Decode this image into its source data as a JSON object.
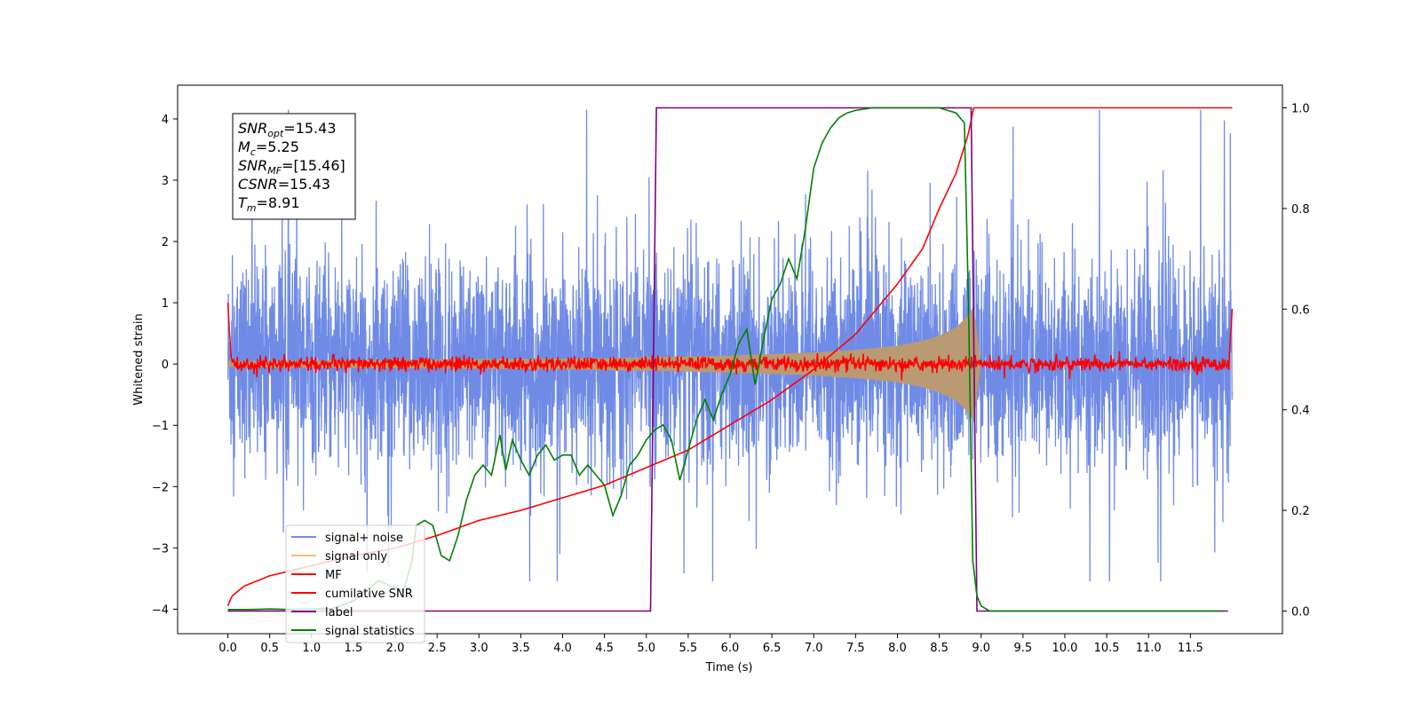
{
  "chart_data": {
    "type": "line",
    "xlabel": "Time (s)",
    "ylabel": "Whitened strain",
    "xlim": [
      -0.6,
      12.6
    ],
    "ylim": [
      -4.4,
      4.55
    ],
    "y2lim": [
      -0.045,
      1.045
    ],
    "x_ticks": [
      "0.0",
      "0.5",
      "1.0",
      "1.5",
      "2.0",
      "2.5",
      "3.0",
      "3.5",
      "4.0",
      "4.5",
      "5.0",
      "5.5",
      "6.0",
      "6.5",
      "7.0",
      "7.5",
      "8.0",
      "8.5",
      "9.0",
      "9.5",
      "10.0",
      "10.5",
      "11.0",
      "11.5"
    ],
    "y_ticks": [
      "4",
      "3",
      "2",
      "1",
      "0",
      "-1",
      "-2",
      "-3",
      "-4"
    ],
    "y2_ticks": [
      "1.0",
      "0.8",
      "0.6",
      "0.4",
      "0.2",
      "0.0"
    ],
    "grid": false,
    "legend_position": "lower-left",
    "annotation": [
      {
        "sym": "SNR",
        "sub": "opt",
        "val": "=15.43"
      },
      {
        "sym": "M",
        "sub": "c",
        "val": "=5.25"
      },
      {
        "sym": "SNR",
        "sub": "MF",
        "val": "=[15.46]"
      },
      {
        "sym": "CSNR",
        "sub": "",
        "val": "=15.43"
      },
      {
        "sym": "T",
        "sub": "m",
        "val": "=8.91"
      }
    ],
    "series": [
      {
        "name": "signal+ noise",
        "axis": "left",
        "color": "#6f8be6",
        "kind": "noise",
        "x_range": [
          0.0,
          12.0
        ],
        "sigma": 1.1,
        "y_max": 4.15,
        "y_min": -3.55
      },
      {
        "name": "signal only",
        "axis": "left",
        "color": "#f5c070",
        "fill_color": "#b99a72",
        "kind": "chirp_envelope",
        "x": [
          0.0,
          1.0,
          2.0,
          3.0,
          4.0,
          5.0,
          6.0,
          7.0,
          7.5,
          8.0,
          8.3,
          8.5,
          8.7,
          8.85,
          8.91,
          9.0
        ],
        "amp": [
          0.05,
          0.06,
          0.07,
          0.08,
          0.09,
          0.11,
          0.14,
          0.19,
          0.23,
          0.3,
          0.38,
          0.46,
          0.6,
          0.8,
          0.95,
          0.0
        ]
      },
      {
        "name": "MF",
        "axis": "left",
        "color": "#ff0000",
        "kind": "mf_noise",
        "x_range": [
          0.0,
          12.0
        ],
        "amp": 0.06,
        "edge_left": 1.0,
        "edge_right": 0.9
      },
      {
        "name": "cumilative SNR",
        "axis": "right",
        "color": "#ff0000",
        "x": [
          0.0,
          0.05,
          0.2,
          0.5,
          1.0,
          1.5,
          2.0,
          2.5,
          3.0,
          3.5,
          4.0,
          4.5,
          5.0,
          5.5,
          6.0,
          6.5,
          7.0,
          7.5,
          8.0,
          8.3,
          8.5,
          8.7,
          8.85,
          8.91,
          12.0
        ],
        "y": [
          0.01,
          0.03,
          0.05,
          0.07,
          0.09,
          0.11,
          0.125,
          0.15,
          0.18,
          0.2,
          0.225,
          0.25,
          0.285,
          0.32,
          0.37,
          0.42,
          0.48,
          0.55,
          0.65,
          0.72,
          0.8,
          0.87,
          0.95,
          1.0,
          1.0
        ]
      },
      {
        "name": "label",
        "axis": "right",
        "color": "#800080",
        "x": [
          0.0,
          5.05,
          5.12,
          8.88,
          8.95,
          11.95
        ],
        "y": [
          0.0,
          0.0,
          1.0,
          1.0,
          0.0,
          0.0
        ]
      },
      {
        "name": "signal statistics",
        "axis": "right",
        "color": "#008000",
        "x": [
          0.0,
          0.25,
          0.5,
          0.75,
          1.0,
          1.25,
          1.5,
          1.65,
          1.8,
          1.95,
          2.1,
          2.2,
          2.25,
          2.35,
          2.45,
          2.55,
          2.65,
          2.75,
          2.85,
          2.95,
          3.05,
          3.15,
          3.25,
          3.32,
          3.4,
          3.5,
          3.6,
          3.7,
          3.8,
          3.9,
          4.0,
          4.1,
          4.2,
          4.3,
          4.4,
          4.5,
          4.6,
          4.7,
          4.8,
          4.9,
          5.0,
          5.1,
          5.2,
          5.3,
          5.4,
          5.5,
          5.6,
          5.7,
          5.8,
          5.9,
          6.0,
          6.1,
          6.2,
          6.3,
          6.4,
          6.5,
          6.6,
          6.7,
          6.8,
          6.9,
          7.0,
          7.1,
          7.2,
          7.3,
          7.4,
          7.5,
          7.7,
          7.9,
          8.2,
          8.5,
          8.7,
          8.8,
          8.85,
          8.9,
          8.95,
          9.0,
          9.1,
          11.9
        ],
        "y": [
          0.003,
          0.003,
          0.004,
          0.003,
          0.004,
          0.005,
          0.02,
          0.04,
          0.06,
          0.05,
          0.04,
          0.1,
          0.17,
          0.18,
          0.17,
          0.11,
          0.1,
          0.15,
          0.22,
          0.27,
          0.29,
          0.27,
          0.35,
          0.28,
          0.34,
          0.3,
          0.27,
          0.31,
          0.33,
          0.3,
          0.31,
          0.31,
          0.27,
          0.29,
          0.27,
          0.25,
          0.19,
          0.23,
          0.29,
          0.31,
          0.34,
          0.36,
          0.37,
          0.34,
          0.26,
          0.32,
          0.38,
          0.42,
          0.38,
          0.43,
          0.47,
          0.53,
          0.56,
          0.45,
          0.54,
          0.62,
          0.65,
          0.7,
          0.66,
          0.76,
          0.88,
          0.93,
          0.96,
          0.98,
          0.99,
          0.995,
          1.0,
          1.0,
          1.0,
          1.0,
          0.99,
          0.97,
          0.6,
          0.1,
          0.03,
          0.01,
          0.0,
          0.0
        ]
      }
    ]
  }
}
